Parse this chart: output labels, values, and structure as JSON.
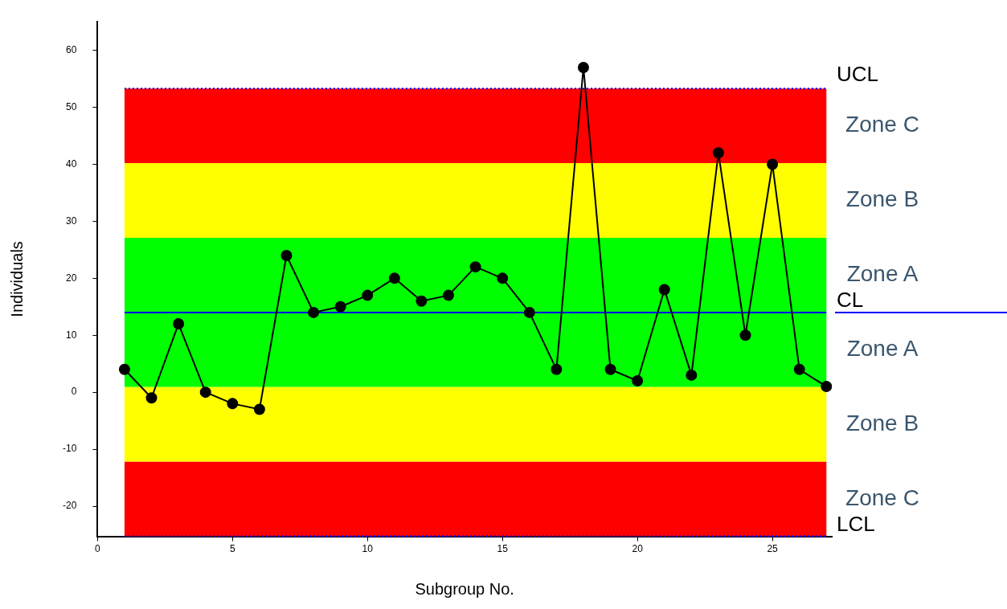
{
  "chart_data": {
    "type": "line",
    "xlabel": "Subgroup No.",
    "ylabel": "Individuals",
    "x": [
      1,
      2,
      3,
      4,
      5,
      6,
      7,
      8,
      9,
      10,
      11,
      12,
      13,
      14,
      15,
      16,
      17,
      18,
      19,
      20,
      21,
      22,
      23,
      24,
      25,
      26,
      27
    ],
    "series": [
      {
        "color": "#000000",
        "values": [
          4,
          -1,
          12,
          0,
          -2,
          -3,
          24,
          14,
          15,
          17,
          20,
          16,
          17,
          22,
          20,
          14,
          4,
          57,
          4,
          2,
          18,
          3,
          42,
          10,
          40,
          4,
          1
        ]
      }
    ],
    "xlim": [
      0,
      27.2
    ],
    "xticks": [
      0,
      5,
      10,
      15,
      20,
      25
    ],
    "ylim": [
      -25.3,
      65
    ],
    "yticks": [
      -20,
      -10,
      0,
      10,
      20,
      30,
      40,
      50,
      60
    ],
    "grid": false,
    "legend": false,
    "marker": "circle",
    "line_style": "solid",
    "bands": [
      {
        "axis": "y",
        "from": 40.2,
        "to": 53.3,
        "label": "Zone C",
        "color": "#ff0000"
      },
      {
        "axis": "y",
        "from": 27.1,
        "to": 40.2,
        "label": "Zone B",
        "color": "#ffff00"
      },
      {
        "axis": "y",
        "from": 14,
        "to": 27.1,
        "label": "Zone A",
        "color": "#00ff00"
      },
      {
        "axis": "y",
        "from": 0.9,
        "to": 14,
        "label": "Zone A",
        "color": "#00ff00"
      },
      {
        "axis": "y",
        "from": -12.2,
        "to": 0.9,
        "label": "Zone B",
        "color": "#ffff00"
      },
      {
        "axis": "y",
        "from": -25.3,
        "to": -12.2,
        "label": "Zone C",
        "color": "#ff0000"
      }
    ],
    "ref_lines": [
      {
        "axis": "y",
        "value": 53.3,
        "label": "UCL",
        "color": "#0000ff",
        "line_style": "dotted"
      },
      {
        "axis": "y",
        "value": 14,
        "label": "CL",
        "color": "#0000ff",
        "line_style": "solid"
      },
      {
        "axis": "y",
        "value": -25.3,
        "label": "LCL",
        "color": "#0000ff",
        "line_style": "dotted"
      }
    ]
  }
}
